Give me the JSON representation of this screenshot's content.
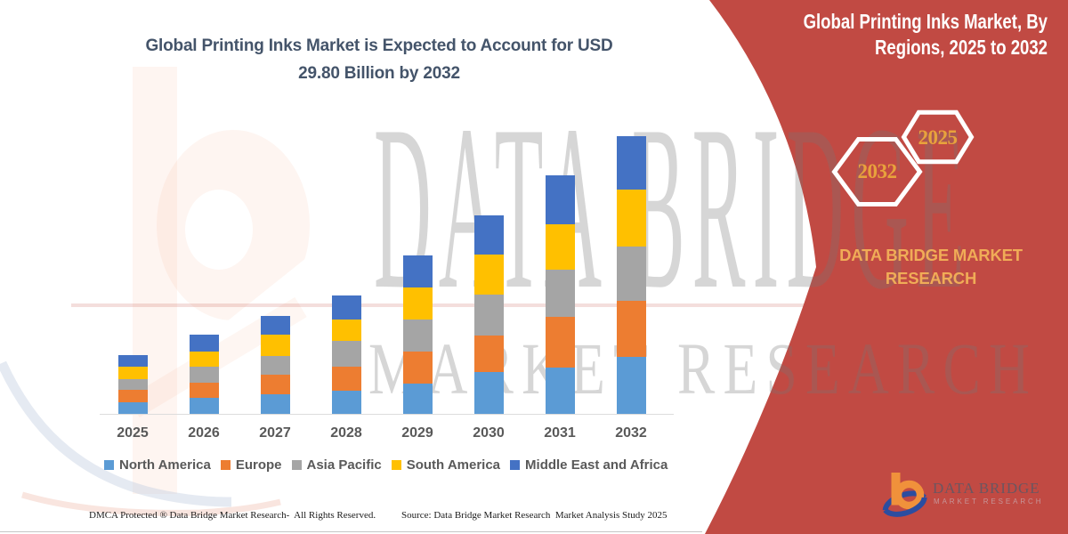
{
  "left_panel": {
    "title_lines": [
      "Global Printing Inks Market is Expected to Account for USD",
      "29.80 Billion by 2032"
    ],
    "footer_left": "DMCA Protected ® Data Bridge Market Research-  All Rights Reserved.",
    "footer_right": "Source: Data Bridge Market Research  Market Analysis Study 2025"
  },
  "right_panel": {
    "title_lines": [
      "Global Printing Inks Market, By",
      "Regions, 2025 to 2032"
    ],
    "hexagon_labels": [
      "2032",
      "2025"
    ],
    "brand_lines": [
      "DATA BRIDGE MARKET",
      "RESEARCH"
    ],
    "panel_color": "#C14A43",
    "gold_color": "#F0AC57"
  },
  "watermark": {
    "line1": "DATA BRIDGE",
    "line2": "MARKET RESEARCH"
  },
  "logo": {
    "name": "DATA BRIDGE",
    "subtitle": "MARKET RESEARCH"
  },
  "chart_data": {
    "type": "bar",
    "stacked": true,
    "title": "Global Printing Inks Market is Expected to Account for USD 29.80 Billion by 2032",
    "unit": "USD Billion",
    "categories": [
      "2025",
      "2026",
      "2027",
      "2028",
      "2029",
      "2030",
      "2031",
      "2032"
    ],
    "series": [
      {
        "name": "North America",
        "color": "#5B9BD5",
        "values": [
          1.36,
          1.78,
          2.22,
          2.54,
          3.36,
          4.53,
          5.08,
          6.19
        ]
      },
      {
        "name": "Europe",
        "color": "#ED7D31",
        "values": [
          1.3,
          1.7,
          2.11,
          2.63,
          3.4,
          3.99,
          5.4,
          6.0
        ]
      },
      {
        "name": "Asia Pacific",
        "color": "#A5A5A5",
        "values": [
          1.14,
          1.63,
          2.0,
          2.7,
          3.43,
          4.31,
          5.06,
          5.83
        ]
      },
      {
        "name": "South America",
        "color": "#FFC000",
        "values": [
          1.32,
          1.62,
          2.22,
          2.31,
          3.46,
          4.31,
          4.84,
          6.04
        ]
      },
      {
        "name": "Middle East and Africa",
        "color": "#4472C4",
        "values": [
          1.27,
          1.82,
          2.07,
          2.6,
          3.37,
          4.22,
          5.28,
          5.73
        ]
      }
    ],
    "totals": [
      6.39,
      8.55,
      10.62,
      12.78,
      17.02,
      21.36,
      25.66,
      29.79
    ],
    "legend_position": "bottom",
    "gridlines": false,
    "value_axis_visible": false
  }
}
